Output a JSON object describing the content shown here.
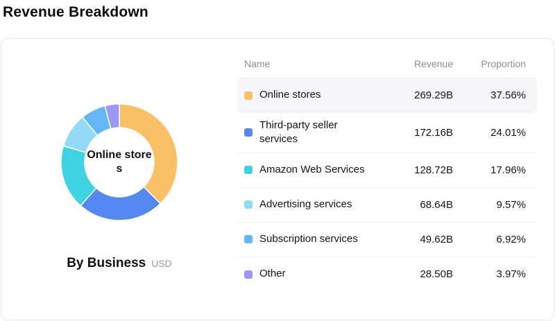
{
  "page_title": "Revenue Breakdown",
  "chart_data": {
    "type": "pie",
    "subtype": "donut",
    "title": "By Business",
    "unit": "USD",
    "center_label": "Online stores",
    "categories": [
      "Online stores",
      "Third-party seller services",
      "Amazon Web Services",
      "Advertising services",
      "Subscription services",
      "Other"
    ],
    "values": [
      269.29,
      172.16,
      128.72,
      68.64,
      49.62,
      28.5
    ],
    "proportions": [
      37.56,
      24.01,
      17.96,
      9.57,
      6.92,
      3.97
    ],
    "colors": [
      "#fac066",
      "#5588f0",
      "#3ed2e2",
      "#92daf6",
      "#64b6f5",
      "#9c97f6"
    ],
    "start_angle_deg": -90,
    "direction": "clockwise"
  },
  "table": {
    "headers": {
      "name": "Name",
      "revenue": "Revenue",
      "proportion": "Proportion"
    },
    "rows": [
      {
        "name": "Online stores",
        "revenue": "269.29B",
        "proportion": "37.56%",
        "color": "#fac066",
        "highlighted": true
      },
      {
        "name": "Third-party seller services",
        "revenue": "172.16B",
        "proportion": "24.01%",
        "color": "#5588f0",
        "highlighted": false
      },
      {
        "name": "Amazon Web Services",
        "revenue": "128.72B",
        "proportion": "17.96%",
        "color": "#3ed2e2",
        "highlighted": false
      },
      {
        "name": "Advertising services",
        "revenue": "68.64B",
        "proportion": "9.57%",
        "color": "#92daf6",
        "highlighted": false
      },
      {
        "name": "Subscription services",
        "revenue": "49.62B",
        "proportion": "6.92%",
        "color": "#64b6f5",
        "highlighted": false
      },
      {
        "name": "Other",
        "revenue": "28.50B",
        "proportion": "3.97%",
        "color": "#9c97f6",
        "highlighted": false
      }
    ]
  }
}
